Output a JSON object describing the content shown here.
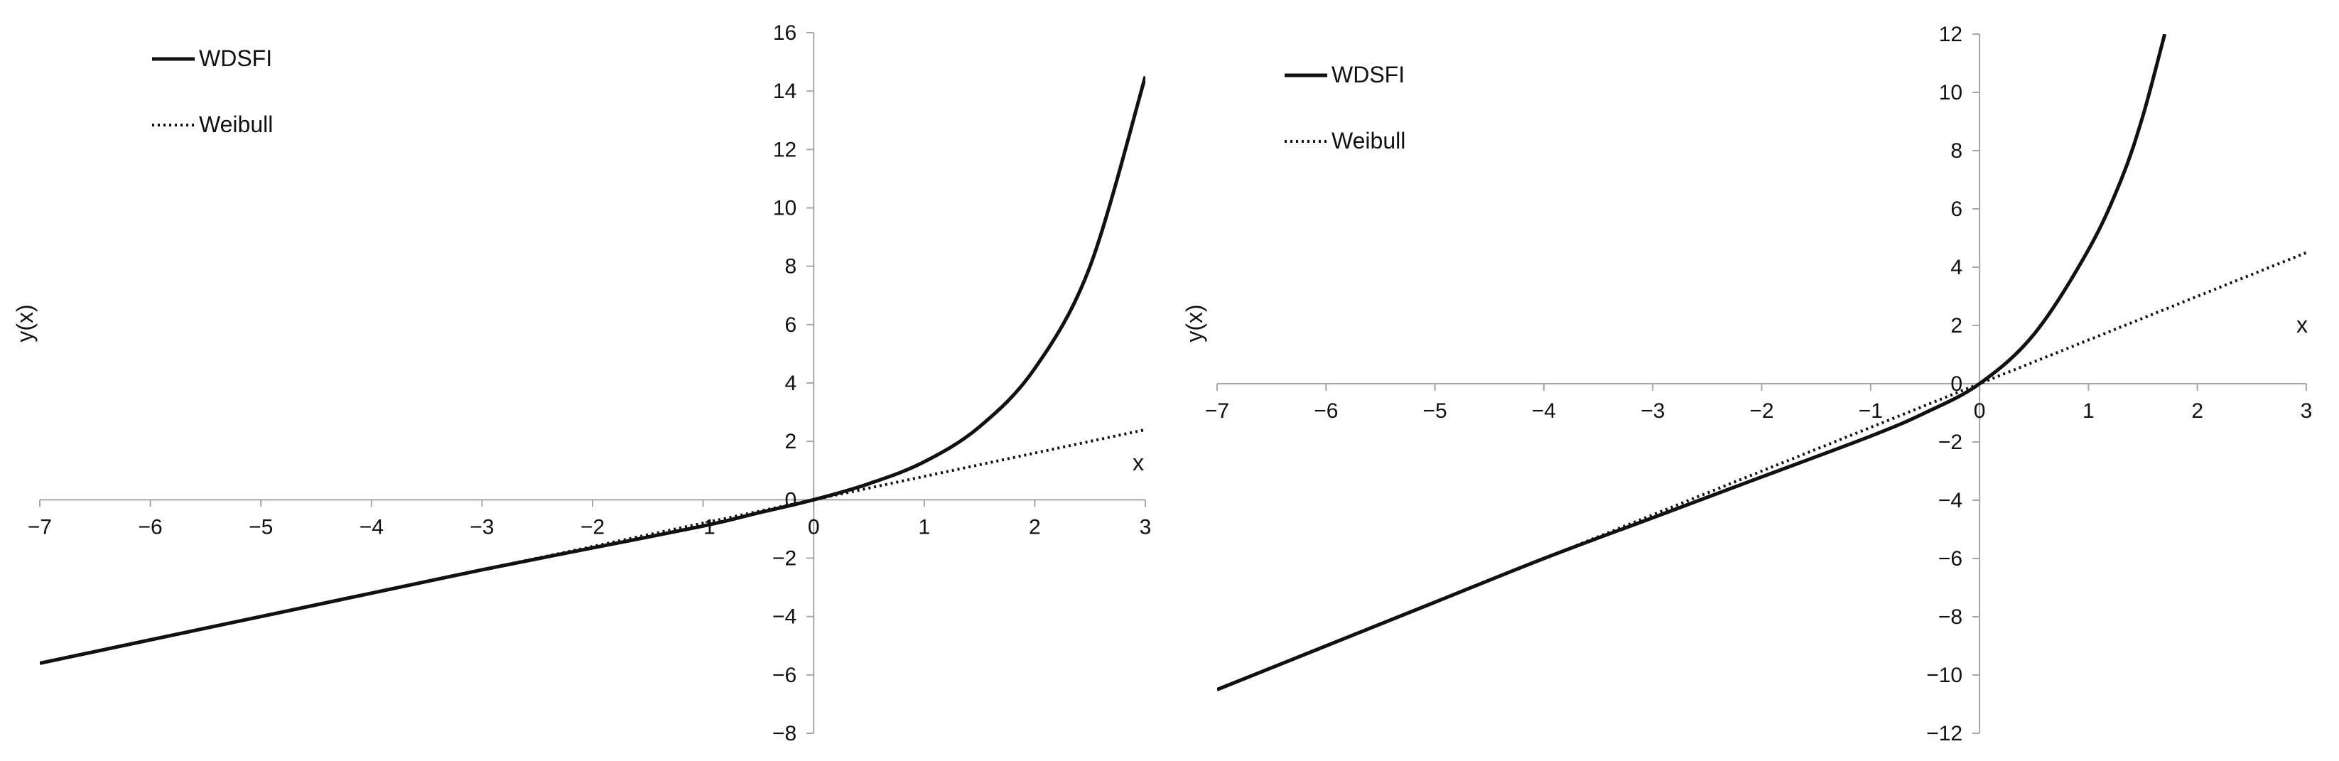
{
  "chart_data": [
    {
      "type": "line",
      "xlabel": "x",
      "ylabel": "y(x)",
      "xlim": [
        -7,
        3
      ],
      "ylim": [
        -8,
        16
      ],
      "x_ticks": [
        -7,
        -6,
        -5,
        -4,
        -3,
        -2,
        -1,
        0,
        1,
        2,
        3
      ],
      "y_ticks": [
        -8,
        -6,
        -4,
        -2,
        0,
        2,
        4,
        6,
        8,
        10,
        12,
        14,
        16
      ],
      "x_tick_labels": [
        "−7",
        "−6",
        "−5",
        "−4",
        "−3",
        "−2",
        "−1",
        "0",
        "1",
        "2",
        "3"
      ],
      "y_tick_labels": [
        "−8",
        "−6",
        "−4",
        "−2",
        "0",
        "2",
        "4",
        "6",
        "8",
        "10",
        "12",
        "14",
        "16"
      ],
      "grid": false,
      "legend_position": "top-left",
      "series": [
        {
          "name": "WDSFI",
          "style": "solid",
          "x": [
            -7,
            -6,
            -5,
            -4,
            -3,
            -2,
            -1,
            -0.5,
            0,
            0.5,
            1,
            1.5,
            2,
            2.5,
            3
          ],
          "y": [
            -5.6,
            -4.8,
            -4.0,
            -3.2,
            -2.4,
            -1.65,
            -0.9,
            -0.45,
            0,
            0.55,
            1.3,
            2.5,
            4.5,
            8.0,
            14.5
          ]
        },
        {
          "name": "Weibull",
          "style": "dotted",
          "x": [
            -7,
            -6,
            -5,
            -4,
            -3,
            -2,
            -1,
            0,
            1,
            2,
            3
          ],
          "y": [
            -5.6,
            -4.8,
            -4.0,
            -3.2,
            -2.4,
            -1.6,
            -0.8,
            0,
            0.8,
            1.6,
            2.4
          ]
        }
      ]
    },
    {
      "type": "line",
      "xlabel": "x",
      "ylabel": "y(x)",
      "xlim": [
        -7,
        3
      ],
      "ylim": [
        -12,
        12
      ],
      "x_ticks": [
        -7,
        -6,
        -5,
        -4,
        -3,
        -2,
        -1,
        0,
        1,
        2,
        3
      ],
      "y_ticks": [
        -12,
        -10,
        -8,
        -6,
        -4,
        -2,
        0,
        2,
        4,
        6,
        8,
        10,
        12
      ],
      "x_tick_labels": [
        "−7",
        "−6",
        "−5",
        "−4",
        "−3",
        "−2",
        "−1",
        "0",
        "1",
        "2",
        "3"
      ],
      "y_tick_labels": [
        "−12",
        "−10",
        "−8",
        "−6",
        "−4",
        "−2",
        "0",
        "2",
        "4",
        "6",
        "8",
        "10",
        "12"
      ],
      "grid": false,
      "legend_position": "top-left",
      "series": [
        {
          "name": "WDSFI",
          "style": "solid",
          "x": [
            -7,
            -6,
            -5,
            -4,
            -3,
            -2,
            -1,
            -0.5,
            0,
            0.5,
            1,
            1.3,
            1.5,
            1.7
          ],
          "y": [
            -10.5,
            -9.0,
            -7.5,
            -6.0,
            -4.6,
            -3.2,
            -1.8,
            -1.0,
            0,
            1.7,
            4.6,
            7.0,
            9.2,
            12.0
          ]
        },
        {
          "name": "Weibull",
          "style": "dotted",
          "x": [
            -7,
            -6,
            -5,
            -4,
            -3,
            -2,
            -1,
            0,
            1,
            2,
            3
          ],
          "y": [
            -10.5,
            -9.0,
            -7.5,
            -6.0,
            -4.5,
            -3.0,
            -1.5,
            0,
            1.5,
            3.0,
            4.5
          ]
        }
      ]
    }
  ]
}
